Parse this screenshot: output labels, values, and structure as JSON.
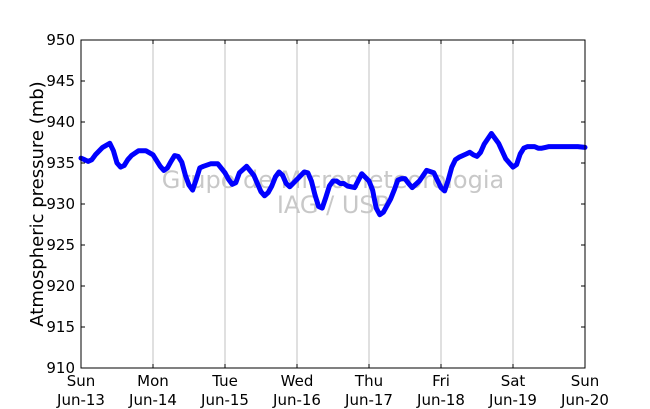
{
  "chart_data": {
    "type": "line",
    "ylabel": "Atmospheric pressure (mb)",
    "ylim": [
      910,
      950
    ],
    "yticks": [
      910,
      915,
      920,
      925,
      930,
      935,
      940,
      945,
      950
    ],
    "xlim": [
      0,
      7
    ],
    "xticks": [
      {
        "day": "Sun",
        "date": "Jun-13"
      },
      {
        "day": "Mon",
        "date": "Jun-14"
      },
      {
        "day": "Tue",
        "date": "Jun-15"
      },
      {
        "day": "Wed",
        "date": "Jun-16"
      },
      {
        "day": "Thu",
        "date": "Jun-17"
      },
      {
        "day": "Fri",
        "date": "Jun-18"
      },
      {
        "day": "Sat",
        "date": "Jun-19"
      },
      {
        "day": "Sun",
        "date": "Jun-20"
      }
    ],
    "grid": "vertical",
    "watermark": [
      "Grupo de Micrometeorologia",
      "IAG / USP"
    ],
    "series": [
      {
        "color": "#0000ff",
        "x": [
          0,
          0.05,
          0.1,
          0.15,
          0.2,
          0.3,
          0.4,
          0.45,
          0.5,
          0.55,
          0.6,
          0.65,
          0.7,
          0.8,
          0.9,
          1.0,
          1.1,
          1.15,
          1.2,
          1.25,
          1.3,
          1.35,
          1.4,
          1.45,
          1.5,
          1.55,
          1.6,
          1.65,
          1.7,
          1.8,
          1.9,
          2.0,
          2.05,
          2.1,
          2.15,
          2.2,
          2.3,
          2.4,
          2.5,
          2.55,
          2.6,
          2.65,
          2.7,
          2.75,
          2.8,
          2.85,
          2.9,
          3.0,
          3.1,
          3.15,
          3.2,
          3.25,
          3.3,
          3.35,
          3.4,
          3.45,
          3.5,
          3.55,
          3.6,
          3.65,
          3.7,
          3.8,
          3.9,
          4.0,
          4.05,
          4.1,
          4.15,
          4.2,
          4.3,
          4.35,
          4.4,
          4.45,
          4.5,
          4.55,
          4.6,
          4.7,
          4.8,
          4.9,
          5.0,
          5.05,
          5.1,
          5.15,
          5.2,
          5.25,
          5.3,
          5.35,
          5.4,
          5.45,
          5.5,
          5.55,
          5.6,
          5.7,
          5.8,
          5.9,
          6.0,
          6.05,
          6.1,
          6.15,
          6.2,
          6.25,
          6.3,
          6.35,
          6.4,
          6.45,
          6.5,
          6.6,
          6.7,
          6.8,
          6.9,
          7.0
        ],
        "y": [
          935.6,
          935.4,
          935.2,
          935.4,
          936.0,
          936.9,
          937.4,
          936.5,
          935.0,
          934.5,
          934.7,
          935.4,
          935.9,
          936.5,
          936.5,
          936.0,
          934.6,
          934.1,
          934.4,
          935.2,
          935.9,
          935.8,
          935.1,
          933.5,
          932.3,
          931.7,
          933.0,
          934.4,
          934.6,
          934.9,
          934.9,
          933.8,
          933.0,
          932.4,
          932.6,
          933.8,
          934.6,
          933.5,
          931.5,
          931.0,
          931.4,
          932.2,
          933.3,
          933.9,
          933.5,
          932.5,
          932.1,
          933.0,
          933.9,
          933.8,
          932.8,
          931.1,
          929.7,
          929.5,
          930.8,
          932.2,
          932.8,
          932.8,
          932.5,
          932.5,
          932.2,
          932.0,
          933.7,
          932.8,
          931.7,
          929.5,
          928.7,
          929.0,
          930.6,
          931.7,
          932.9,
          933.1,
          933.1,
          932.5,
          932.0,
          932.8,
          934.1,
          933.8,
          932.0,
          931.6,
          932.9,
          934.5,
          935.4,
          935.7,
          935.9,
          936.1,
          936.3,
          936.0,
          935.8,
          936.3,
          937.3,
          938.6,
          937.4,
          935.5,
          934.5,
          934.8,
          936.1,
          936.8,
          937.0,
          937.0,
          937.0,
          936.8,
          936.8,
          936.9,
          937.0,
          937.0,
          937.0,
          937.0,
          937.0,
          936.9
        ]
      }
    ]
  }
}
